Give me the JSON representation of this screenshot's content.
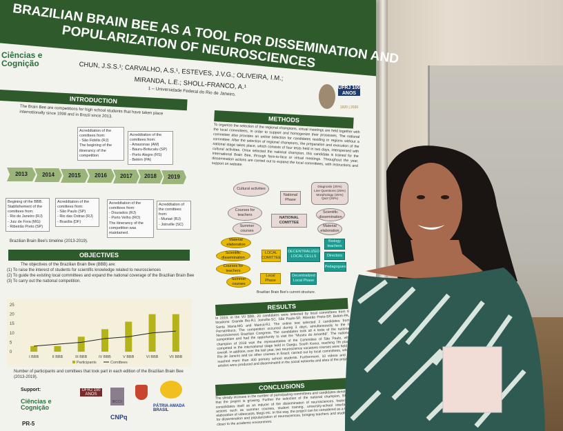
{
  "poster": {
    "title_line1": "BRAZILIAN BRAIN BEE AS A TOOL FOR DISSEMINATION AND",
    "title_line2": "POPULARIZATION OF NEUROSCIENCES",
    "logo_text": "Ciências e Cognição",
    "authors_line1": "CHUN, J.S.S.¹; CARVALHO, A.S.¹, ESTEVES, J.V.G.; OLIVEIRA, I.M.;",
    "authors_line2": "MIRANDA, L.E.; SHOLL-FRANCO, A.¹",
    "affiliation": "1 – Universidade Federal do Rio de Janeiro.",
    "ufrj_logo": {
      "text": "UFRJ 100 ANOS",
      "years": "1920 | 2020"
    },
    "introduction": {
      "header": "INTRODUCTION",
      "text": "The Brain Bee are competitions for high school students that have taken place internationally since 1998 and in Brazil since 2013.",
      "timeline_years": [
        "2013",
        "2014",
        "2015",
        "2016",
        "2017",
        "2018",
        "2019"
      ],
      "boxes_top": [
        "Acreddtation of the comittees from:\n- São Fidélis (RJ)\nThe begining of the itinerancy of the competition",
        "Acreddtation of the comittees from:\n- Amazonas (AM)\n- Bauru-Botucatu (SP)\n- Porto Alegre (RS)\n- Belém (PA)"
      ],
      "boxes_bottom": [
        "Begining of the BBB.\nStablishement of the comittees from:\n- Rio de Janeiro (RJ)\n- Juiz de Fora (MG)\n- Ribeirão Preto (SP)",
        "Acreddtation of the comittees from:\n- São Paulo (SP)\n- Rio das Ostras (RJ)\n- Brasília (DF)",
        "Acreddtation of the comittees from:\n- Dourados (RJ)\n- Porto Velho (RO)\nThe itinerancy of the competition was maintained.",
        "Acreddtation of the comittees from:\n- Muriaé (RJ)\n- Joinville (SC)"
      ],
      "caption": "Brazilian Brain Bee's timeline (2013-2019)."
    },
    "objectives": {
      "header": "OBJECTIVES",
      "intro": "The objectives of the Brazilian Brain Bee (BBB) are:",
      "items": [
        "(1) To raise the interest of students for scientific knowledge related to neurosciences",
        "(2) To guide the existing local committees and expand the national coverage of the Brazilian Brain Bee",
        "(3) To carry out the national competition."
      ],
      "caption": "Number of participants and comittees that took part in each edition of the Brazilian Brain Bee (2013-2019)."
    },
    "support": {
      "label": "Support:",
      "logos": [
        "Ciências e Cognição",
        "UFRJ 100 ANOS",
        "IBCCF",
        "CNPq",
        "PÁTRIA AMADA BRASIL",
        "PR-5"
      ]
    },
    "methods": {
      "header": "METHODS",
      "text": "To organize the selection of the regional champions, virtual meetings are held together with the local committees, in order to support and homogenize their processes. The national committee also provides an online selection for candidates residing in regions without a committee. After the selection of regional champions, the preparation and execution of the national stage takes place, which consists of four tests held in two days, interspersed with cultural activities. Once selected the national champion, this candidate is trained for the International Brain Bee, through face-to-face or virtual meetings. Throughout the year, dissemination actions are carried out to expand the local committees, with instructions and support on website.",
      "diagram": {
        "national_committee": "NATIONAL COMITTEE",
        "national_phase": "National Phase",
        "cultural": "Cultural activities",
        "tests": "Diagnosis (25%)\nLive Questions (25%)\nMorphology (25%)\nQuiz (25%)",
        "courses_teachers": "Courses for teachers",
        "summer_courses": "Summer courses",
        "sci_diss": "Scientific dissemination",
        "material": "Material elaboration",
        "local_committee": "LOCAL COMITTEE",
        "local_phase": "Local Phase",
        "local_items": [
          "Material elaboration",
          "Scientific dissemination",
          "Courses for teachers",
          "Summer courses"
        ],
        "decentralized": "DECENTRALIZED LOCAL CELLS",
        "decentralized_phase": "Decentralized Local Phase",
        "cell_items": [
          "Biology teachers",
          "Directors",
          "Pedagogues"
        ]
      },
      "caption": "Brazilian Brain Bee's current structure."
    },
    "results": {
      "header": "RESULTS",
      "text": "In 2019, in the VII BBB, 20 candidates were selected by local committees from 8 locations: Grande Rio-RJ, Joinville-SC, São Paulo-SP, Ribeirão Preto-SP, Belém-PA, Santa Maria-MG and Maricá-RJ. The online test selected 2 candidates from Pernambuco. The competition occurred during 3 days, simultaneously to the II Neurosciences Brazilian Congress. The candidates took all 4 tests of the national competition and had the opportunity to visit the \"Museu do Amanhã\". The national champion of 2019 was the representative of the Committee of São Paulo, who competed in the international stage held in Daegu, South Korea, reaching 7th place overall. In addition, over the last year, two neuroscience vacations courses were held in Rio de Janeiro and six other courses in Brazil, carried out by local committees, which reached more than 400 primary school students. Furthermore, 10 videos and 22 articles were produced and disseminated in the social networks and sites of the project."
    },
    "conclusions": {
      "header": "CONCLUSIONS",
      "text": "The steady increase in the number of participating committees and candidates denotes that the project is growing. Further the selection of the national champion, BBB consolidates itself as an inducer of the dissemination of neurosciences, fostering actions such as summer courses, student training, university-school interface, elaboration of videocasts, blogs etc. In this way, the project can be considered as a tool for dissemination and popularization of neurosciences, bringing teachers and students closer to the academic environment."
    },
    "colors": {
      "poster_green": "#2f5a2c",
      "bar": "#b5b31a",
      "timeline": "#9bb47a",
      "yellow_nodes": "#e8b900",
      "teal_nodes": "#1e9a8e"
    }
  },
  "chart_data": {
    "type": "bar",
    "categories": [
      "I BBB",
      "II BBB",
      "III BBB",
      "IV BBB",
      "V BBB",
      "VI BBB",
      "VII BBB"
    ],
    "series": [
      {
        "name": "Participants",
        "kind": "bar",
        "values": [
          3,
          3,
          8,
          12,
          16,
          20,
          20
        ]
      },
      {
        "name": "Comittees",
        "kind": "line",
        "values": [
          3,
          4,
          5,
          7,
          8,
          10,
          11
        ]
      }
    ],
    "yticks": [
      "0",
      "5",
      "10",
      "15",
      "20",
      "25"
    ],
    "ylim": [
      0,
      25
    ],
    "legend": "bottom"
  }
}
